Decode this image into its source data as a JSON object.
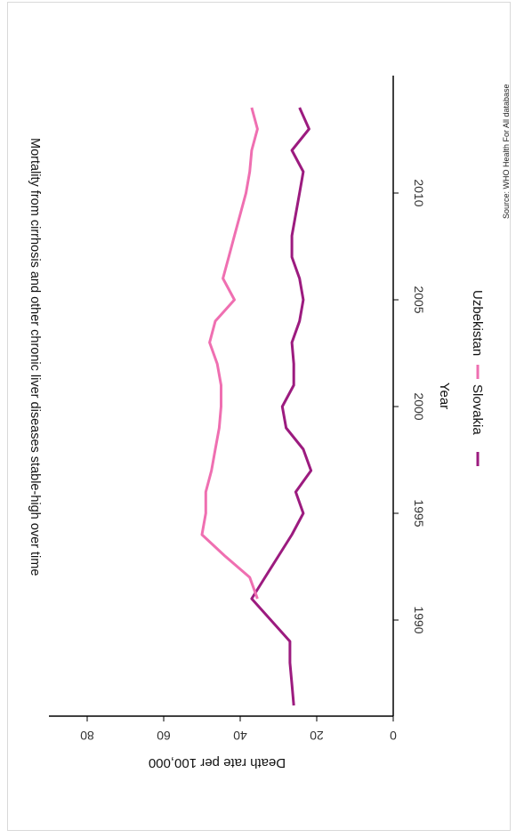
{
  "chart_data": {
    "type": "line",
    "title": "Mortality from cirrhosis and other chronic liver diseases stable-high over time",
    "xlabel": "Year",
    "ylabel": "Death rate per 100,000",
    "xlim": [
      1985.5,
      2015.5
    ],
    "ylim": [
      0,
      90
    ],
    "x_ticks": [
      1990,
      1995,
      2000,
      2005,
      2010
    ],
    "y_ticks": [
      0,
      20,
      40,
      60,
      80
    ],
    "grid": false,
    "legend_position": "bottom",
    "series": [
      {
        "name": "Slovakia",
        "color": "#9c1b7f",
        "x": [
          1986,
          1987,
          1988,
          1989,
          1990,
          1991,
          1992,
          1993,
          1994,
          1995,
          1996,
          1997,
          1998,
          1999,
          2000,
          2001,
          2002,
          2003,
          2004,
          2005,
          2006,
          2007,
          2008,
          2009,
          2010,
          2011,
          2012,
          2013,
          2014
        ],
        "y": [
          26,
          26.5,
          27,
          27,
          32,
          37,
          33.5,
          30,
          26.5,
          23.5,
          25.5,
          21.5,
          23.5,
          28,
          29,
          26,
          26,
          26.5,
          24.5,
          23.5,
          24.5,
          26.5,
          26.5,
          25.5,
          24.5,
          23.5,
          26.5,
          22,
          24.5
        ]
      },
      {
        "name": "Uzbekistan",
        "color": "#ef6fb1",
        "x": [
          1991,
          1992,
          1993,
          1994,
          1995,
          1996,
          1997,
          1998,
          1999,
          2000,
          2001,
          2002,
          2003,
          2004,
          2005,
          2006,
          2007,
          2008,
          2009,
          2010,
          2011,
          2012,
          2013,
          2014
        ],
        "y": [
          35.5,
          37.5,
          44,
          50,
          49,
          49,
          47.5,
          46.5,
          45.5,
          45,
          45,
          46,
          48,
          46.5,
          41.5,
          44.5,
          43,
          41.5,
          40,
          38.5,
          37.5,
          37,
          35.5,
          37
        ]
      }
    ],
    "source": "Source: WHO Health For All database"
  }
}
